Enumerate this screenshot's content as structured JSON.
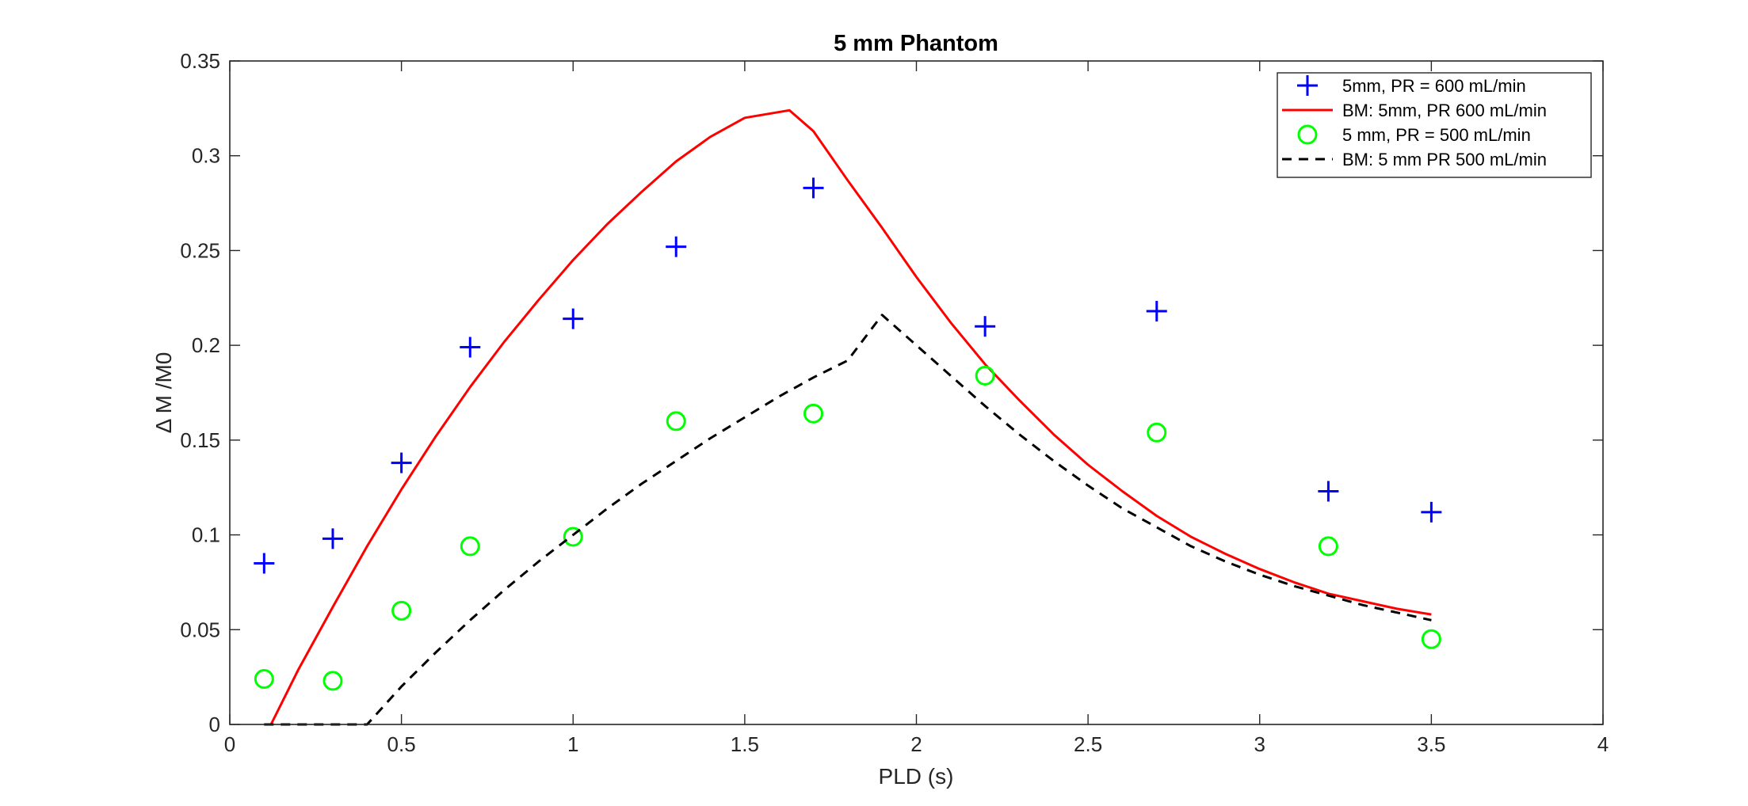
{
  "chart_data": {
    "type": "line",
    "title": "5 mm Phantom",
    "xlabel": "PLD (s)",
    "ylabel": "Δ M /M0",
    "xlim": [
      0,
      4
    ],
    "ylim": [
      0,
      0.35
    ],
    "xticks": [
      0,
      0.5,
      1,
      1.5,
      2,
      2.5,
      3,
      3.5,
      4
    ],
    "xtick_labels": [
      "0",
      "0.5",
      "1",
      "1.5",
      "2",
      "2.5",
      "3",
      "3.5",
      "4"
    ],
    "yticks": [
      0,
      0.05,
      0.1,
      0.15,
      0.2,
      0.25,
      0.3,
      0.35
    ],
    "ytick_labels": [
      "0",
      "0.05",
      "0.1",
      "0.15",
      "0.2",
      "0.25",
      "0.3",
      "0.35"
    ],
    "grid": false,
    "legend_position": "top-right",
    "series": [
      {
        "name": "5mm, PR = 600 mL/min",
        "style": "marker",
        "marker": "plus",
        "color": "#0000ff",
        "x": [
          0.1,
          0.3,
          0.5,
          0.7,
          1.0,
          1.3,
          1.7,
          2.2,
          2.7,
          3.2,
          3.5
        ],
        "y": [
          0.085,
          0.098,
          0.138,
          0.199,
          0.214,
          0.252,
          0.283,
          0.21,
          0.218,
          0.123,
          0.112
        ]
      },
      {
        "name": "BM: 5mm, PR 600 mL/min",
        "style": "solid",
        "color": "#ff0000",
        "x": [
          0.12,
          0.2,
          0.3,
          0.4,
          0.5,
          0.6,
          0.7,
          0.8,
          0.9,
          1.0,
          1.1,
          1.2,
          1.3,
          1.4,
          1.5,
          1.63,
          1.7,
          1.8,
          1.9,
          2.0,
          2.1,
          2.2,
          2.3,
          2.4,
          2.5,
          2.6,
          2.7,
          2.8,
          2.9,
          3.0,
          3.1,
          3.2,
          3.3,
          3.4,
          3.5
        ],
        "y": [
          0.0,
          0.029,
          0.062,
          0.094,
          0.124,
          0.152,
          0.178,
          0.202,
          0.224,
          0.245,
          0.264,
          0.281,
          0.297,
          0.31,
          0.32,
          0.324,
          0.313,
          0.287,
          0.262,
          0.236,
          0.212,
          0.19,
          0.171,
          0.153,
          0.137,
          0.123,
          0.11,
          0.099,
          0.09,
          0.082,
          0.075,
          0.069,
          0.065,
          0.061,
          0.058
        ]
      },
      {
        "name": "5 mm, PR = 500 mL/min",
        "style": "marker",
        "marker": "circle",
        "color": "#00ff00",
        "x": [
          0.1,
          0.3,
          0.5,
          0.7,
          1.0,
          1.3,
          1.7,
          2.2,
          2.7,
          3.2,
          3.5
        ],
        "y": [
          0.024,
          0.023,
          0.06,
          0.094,
          0.099,
          0.16,
          0.164,
          0.184,
          0.154,
          0.094,
          0.045
        ]
      },
      {
        "name": "BM: 5 mm PR 500 mL/min",
        "style": "dashed",
        "color": "#000000",
        "x": [
          0.1,
          0.2,
          0.3,
          0.4,
          0.5,
          0.6,
          0.7,
          0.8,
          0.9,
          1.0,
          1.1,
          1.2,
          1.3,
          1.4,
          1.5,
          1.6,
          1.7,
          1.8,
          1.9,
          2.0,
          2.1,
          2.2,
          2.3,
          2.4,
          2.5,
          2.6,
          2.7,
          2.8,
          2.9,
          3.0,
          3.1,
          3.2,
          3.3,
          3.4,
          3.5
        ],
        "y": [
          0.0,
          0.0,
          0.0,
          0.0,
          0.02,
          0.038,
          0.055,
          0.071,
          0.086,
          0.1,
          0.114,
          0.127,
          0.139,
          0.151,
          0.162,
          0.173,
          0.183,
          0.192,
          0.216,
          0.2,
          0.184,
          0.168,
          0.153,
          0.139,
          0.126,
          0.114,
          0.104,
          0.094,
          0.086,
          0.079,
          0.073,
          0.068,
          0.063,
          0.059,
          0.055
        ]
      }
    ]
  }
}
